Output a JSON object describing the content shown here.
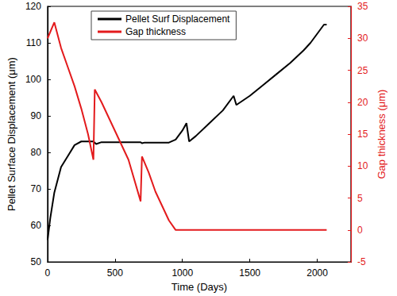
{
  "chart_data": {
    "type": "line",
    "x_label": "Time (Days)",
    "y_label": "Pellet Surface Displacement (μm)",
    "y2_label": "Gap thickness (μm)",
    "xlim": [
      0,
      2250
    ],
    "xticks": [
      0,
      500,
      1000,
      1500,
      2000
    ],
    "ylim": [
      50,
      120
    ],
    "yticks": [
      50,
      60,
      70,
      80,
      90,
      100,
      110,
      120
    ],
    "y2lim": [
      -5,
      35
    ],
    "y2ticks": [
      -5,
      0,
      5,
      10,
      15,
      20,
      25,
      30,
      35
    ],
    "grid": false,
    "legend": "upper center",
    "series": [
      {
        "name": "Pellet Surf Displacement",
        "color": "#000000",
        "axis": "y",
        "x": [
          0,
          20,
          50,
          100,
          150,
          200,
          250,
          300,
          340,
          360,
          400,
          500,
          600,
          690,
          700,
          720,
          800,
          900,
          950,
          1000,
          1030,
          1050,
          1100,
          1200,
          1300,
          1380,
          1400,
          1500,
          1600,
          1700,
          1800,
          1900,
          1950,
          2000,
          2050,
          2070
        ],
        "values": [
          56,
          62,
          69,
          76,
          79,
          82,
          83,
          83,
          83,
          82.3,
          82.8,
          82.8,
          82.8,
          82.8,
          82.5,
          82.7,
          82.7,
          82.7,
          83.5,
          86,
          88,
          83,
          84.5,
          88,
          91.5,
          95.5,
          93,
          95.5,
          98.5,
          101.5,
          104.5,
          108,
          110,
          112.5,
          115,
          115
        ]
      },
      {
        "name": "Gap thickness",
        "color": "#e31a1c",
        "axis": "y2",
        "x": [
          0,
          50,
          100,
          150,
          200,
          250,
          300,
          340,
          350,
          400,
          500,
          600,
          690,
          700,
          750,
          800,
          900,
          950,
          1000,
          1500,
          2000,
          2070
        ],
        "values": [
          30,
          32.5,
          28.5,
          25.5,
          22.5,
          19,
          15,
          11,
          22,
          20,
          15.5,
          11,
          4.5,
          11.5,
          9,
          6,
          1.5,
          0,
          0,
          0,
          0,
          0
        ]
      }
    ]
  }
}
